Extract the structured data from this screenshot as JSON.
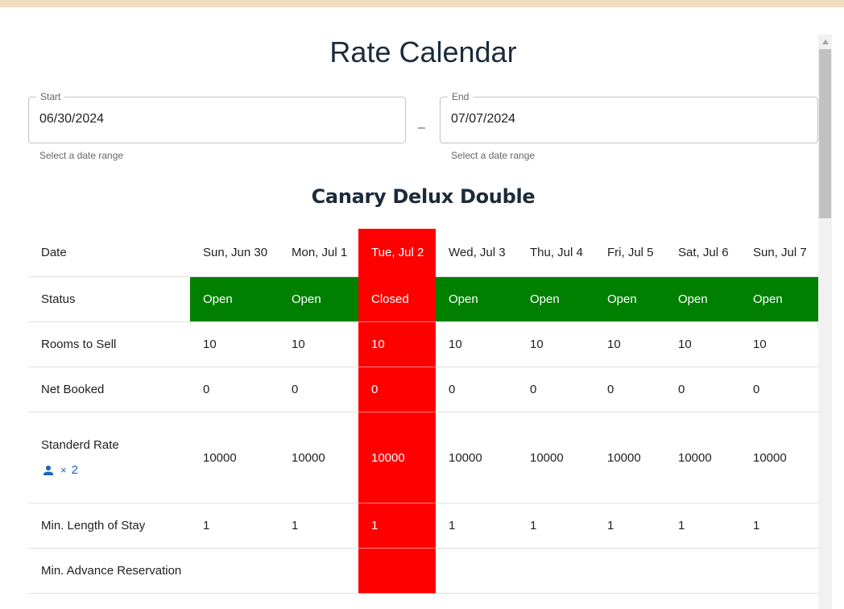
{
  "title": "Rate Calendar",
  "date_range": {
    "start": {
      "label": "Start",
      "value": "06/30/2024",
      "helper": "Select a date range"
    },
    "separator": "–",
    "end": {
      "label": "End",
      "value": "07/07/2024",
      "helper": "Select a date range"
    }
  },
  "room_type": "Canary Delux Double",
  "table": {
    "header_label": "Date",
    "dates": [
      "Sun, Jun 30",
      "Mon, Jul 1",
      "Tue, Jul 2",
      "Wed, Jul 3",
      "Thu, Jul 4",
      "Fri, Jul 5",
      "Sat, Jul 6",
      "Sun, Jul 7"
    ],
    "rows": {
      "status": {
        "label": "Status",
        "values": [
          "Open",
          "Open",
          "Closed",
          "Open",
          "Open",
          "Open",
          "Open",
          "Open"
        ]
      },
      "rooms_to_sell": {
        "label": "Rooms to Sell",
        "values": [
          "10",
          "10",
          "10",
          "10",
          "10",
          "10",
          "10",
          "10"
        ]
      },
      "net_booked": {
        "label": "Net Booked",
        "values": [
          "0",
          "0",
          "0",
          "0",
          "0",
          "0",
          "0",
          "0"
        ]
      },
      "standard_rate": {
        "label": "Standerd Rate",
        "guests_multiplier": "×",
        "guests_count": "2",
        "values": [
          "10000",
          "10000",
          "10000",
          "10000",
          "10000",
          "10000",
          "10000",
          "10000"
        ]
      },
      "min_length_of_stay": {
        "label": "Min. Length of Stay",
        "values": [
          "1",
          "1",
          "1",
          "1",
          "1",
          "1",
          "1",
          "1"
        ]
      },
      "min_advance_reservation": {
        "label": "Min. Advance Reservation",
        "values": [
          "",
          "",
          "",
          "",
          "",
          "",
          "",
          ""
        ]
      }
    }
  },
  "colors": {
    "open": "#008000",
    "closed": "#ff0000",
    "accent": "#1565c0",
    "topbar": "#efdcc0"
  },
  "icons": {
    "guests": "person-icon"
  }
}
